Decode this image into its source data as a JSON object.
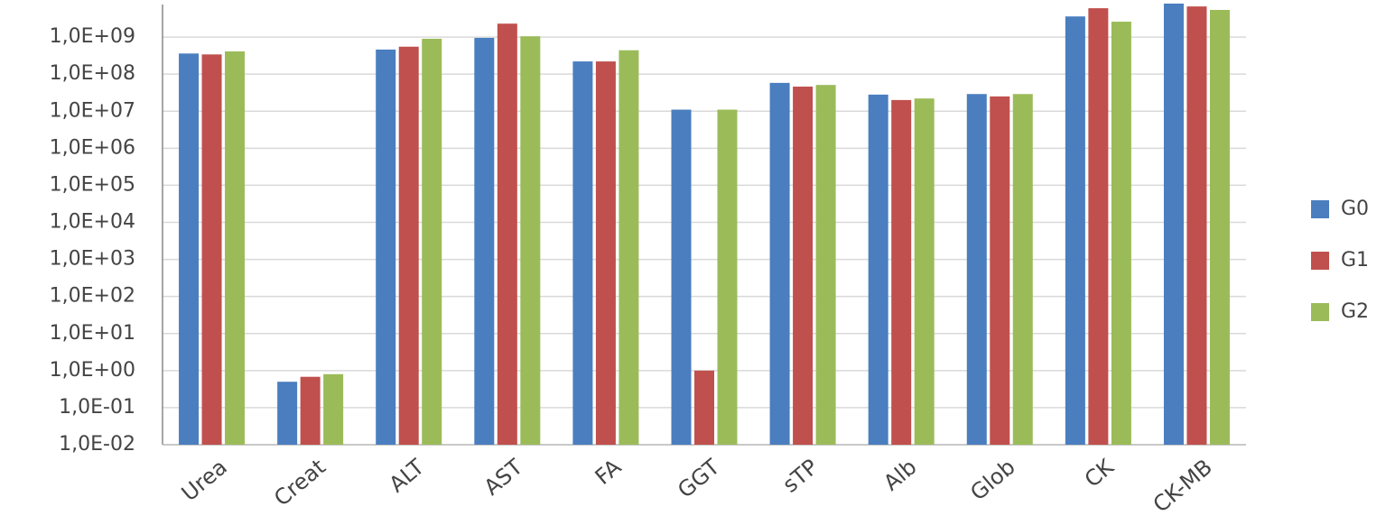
{
  "chart_data": {
    "type": "bar",
    "categories": [
      "Urea",
      "Creat",
      "ALT",
      "AST",
      "FA",
      "GGT",
      "sTP",
      "Alb",
      "Glob",
      "CK",
      "CK-MB"
    ],
    "series": [
      {
        "name": "G0",
        "color": "#4a7ebf",
        "values": [
          360000000,
          0.5,
          460000000,
          950000000,
          220000000,
          11000000,
          58000000,
          28000000,
          29000000,
          3600000000,
          8000000000
        ]
      },
      {
        "name": "G1",
        "color": "#c0504d",
        "values": [
          340000000,
          0.68,
          550000000,
          2300000000,
          220000000,
          1.0,
          46000000,
          20000000,
          25000000,
          6000000000,
          6700000000
        ]
      },
      {
        "name": "G2",
        "color": "#9bbb59",
        "values": [
          410000000,
          0.8,
          900000000,
          1050000000,
          440000000,
          11000000,
          51000000,
          22000000,
          29000000,
          2600000000,
          5400000000
        ]
      }
    ],
    "ylog": true,
    "ylim": [
      0.01,
      10000000000
    ],
    "yticks": [
      {
        "value": 0.01,
        "label": "1,0E-02"
      },
      {
        "value": 0.1,
        "label": "1,0E-01"
      },
      {
        "value": 1,
        "label": "1,0E+00"
      },
      {
        "value": 10,
        "label": "1,0E+01"
      },
      {
        "value": 100,
        "label": "1,0E+02"
      },
      {
        "value": 1000,
        "label": "1,0E+03"
      },
      {
        "value": 10000,
        "label": "1,0E+04"
      },
      {
        "value": 100000,
        "label": "1,0E+05"
      },
      {
        "value": 1000000,
        "label": "1,0E+06"
      },
      {
        "value": 10000000,
        "label": "1,0E+07"
      },
      {
        "value": 100000000,
        "label": "1,0E+08"
      },
      {
        "value": 1000000000,
        "label": "1,0E+09"
      }
    ],
    "grid": true,
    "legend": "right"
  }
}
